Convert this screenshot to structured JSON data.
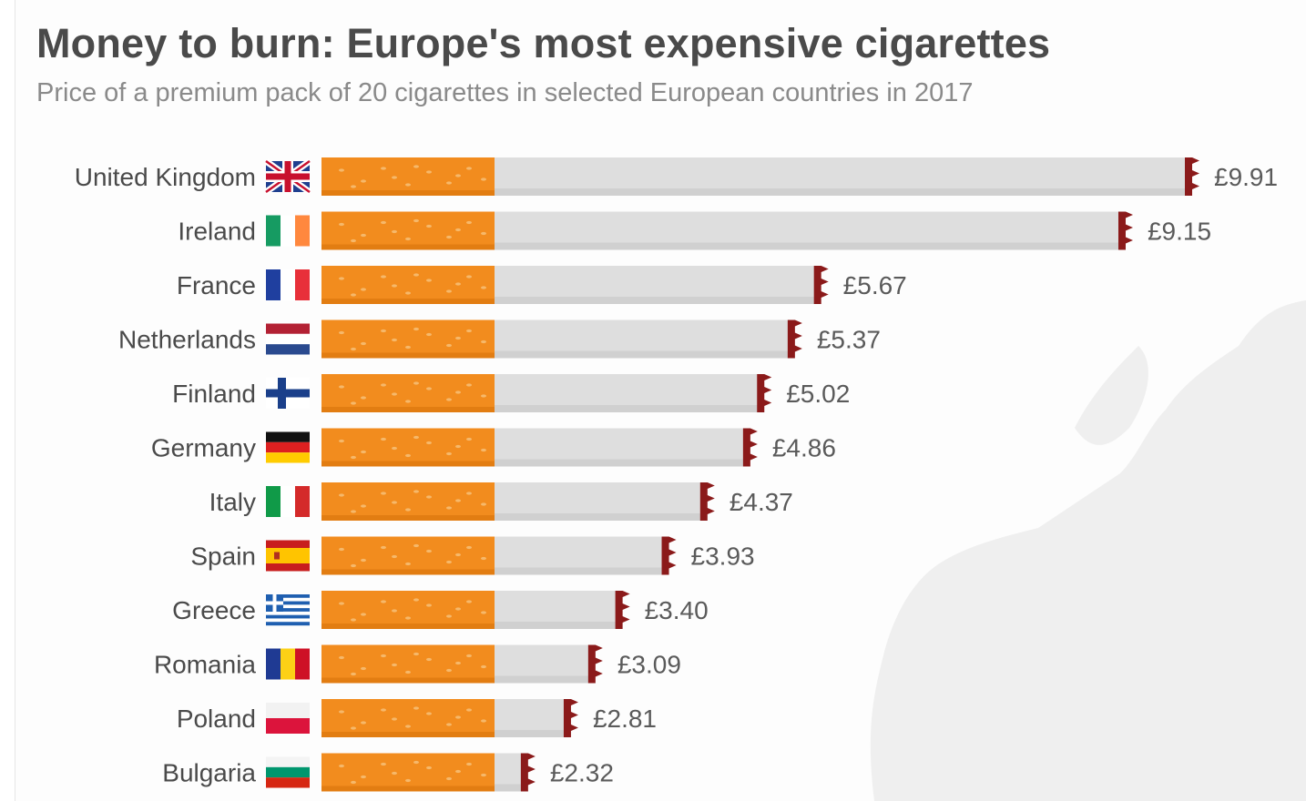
{
  "chart_data": {
    "type": "bar",
    "title": "Money to burn: Europe's most expensive cigarettes",
    "subtitle": "Price of a premium pack of 20 cigarettes in selected European countries in 2017",
    "unit": "£",
    "categories": [
      "United Kingdom",
      "Ireland",
      "France",
      "Netherlands",
      "Finland",
      "Germany",
      "Italy",
      "Spain",
      "Greece",
      "Romania",
      "Poland",
      "Bulgaria"
    ],
    "values": [
      9.91,
      9.15,
      5.67,
      5.37,
      5.02,
      4.86,
      4.37,
      3.93,
      3.4,
      3.09,
      2.81,
      2.32
    ],
    "value_labels": [
      "£9.91",
      "£9.15",
      "£5.67",
      "£5.37",
      "£5.02",
      "£4.86",
      "£4.37",
      "£3.93",
      "£3.40",
      "£3.09",
      "£2.81",
      "£2.32"
    ],
    "flags": [
      "uk-flag-icon",
      "ireland-flag-icon",
      "france-flag-icon",
      "netherlands-flag-icon",
      "finland-flag-icon",
      "germany-flag-icon",
      "italy-flag-icon",
      "spain-flag-icon",
      "greece-flag-icon",
      "romania-flag-icon",
      "poland-flag-icon",
      "bulgaria-flag-icon"
    ],
    "colors": {
      "filter": "#f28c1e",
      "paper": "#dedede",
      "ember": "#8b1a1a"
    }
  }
}
